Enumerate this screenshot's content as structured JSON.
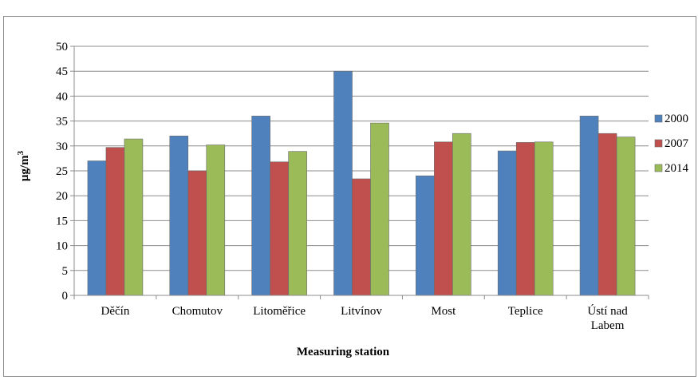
{
  "chart_data": {
    "type": "bar",
    "categories": [
      "Děčín",
      "Chomutov",
      "Litoměřice",
      "Litvínov",
      "Most",
      "Teplice",
      "Ústí nad Labem"
    ],
    "category_lines": [
      [
        "Děčín"
      ],
      [
        "Chomutov"
      ],
      [
        "Litoměřice"
      ],
      [
        "Litvínov"
      ],
      [
        "Most"
      ],
      [
        "Teplice"
      ],
      [
        "Ústí nad",
        "Labem"
      ]
    ],
    "series": [
      {
        "name": "2000",
        "color": "#4f81bd",
        "values": [
          27,
          32,
          36,
          45,
          24,
          29,
          36
        ]
      },
      {
        "name": "2007",
        "color": "#c0504d",
        "values": [
          29.7,
          25,
          26.8,
          23.4,
          30.8,
          30.7,
          32.5
        ]
      },
      {
        "name": "2014",
        "color": "#9bbb59",
        "values": [
          31.4,
          30.2,
          28.9,
          34.6,
          32.5,
          30.8,
          31.8
        ]
      }
    ],
    "xlabel": "Measuring station",
    "ylabel": "μg/m",
    "ylabel_superscript": "3",
    "ylim": [
      0,
      50
    ],
    "yticks": [
      0,
      5,
      10,
      15,
      20,
      25,
      30,
      35,
      40,
      45,
      50
    ],
    "grid": true,
    "legend_position": "right"
  }
}
